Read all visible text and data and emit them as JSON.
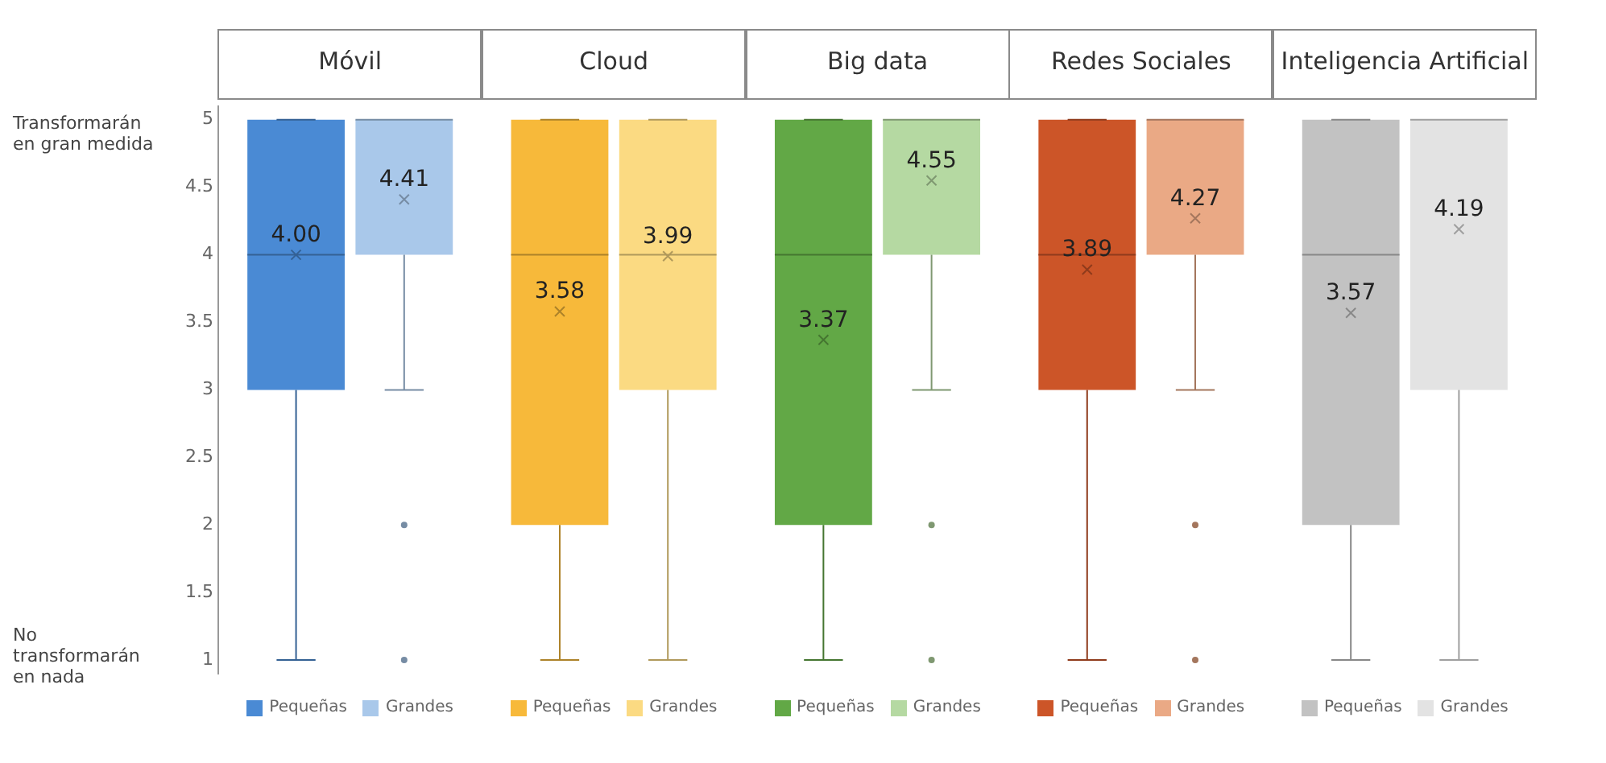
{
  "chart_data": {
    "type": "box",
    "categories": [
      "Móvil",
      "Cloud",
      "Big data",
      "Redes Sociales",
      "Inteligencia Artificial"
    ],
    "ylim": [
      0.9,
      5.1
    ],
    "yticks": [
      1,
      1.5,
      2,
      2.5,
      3,
      3.5,
      4,
      4.5,
      5
    ],
    "grid": false,
    "legend": "bottom",
    "annotations": [
      "Transformarán en gran medida",
      "No transformarán en nada"
    ],
    "series": [
      {
        "name": "Pequeñas",
        "colors": [
          "#4a8ad4",
          "#f7b93a",
          "#62a846",
          "#cc5528",
          "#c2c2c2"
        ],
        "value_labels": [
          "4.00",
          "3.58",
          "3.37",
          "3.89",
          "3.57"
        ],
        "boxes": [
          {
            "low": 1,
            "q1": 3,
            "median": 4,
            "q3": 5,
            "high": 5,
            "mean": 4.0
          },
          {
            "low": 1,
            "q1": 2,
            "median": 4,
            "q3": 5,
            "high": 5,
            "mean": 3.58
          },
          {
            "low": 1,
            "q1": 2,
            "median": 4,
            "q3": 5,
            "high": 5,
            "mean": 3.37
          },
          {
            "low": 1,
            "q1": 3,
            "median": 4,
            "q3": 5,
            "high": 5,
            "mean": 3.89
          },
          {
            "low": 1,
            "q1": 2,
            "median": 4,
            "q3": 5,
            "high": 5,
            "mean": 3.57
          }
        ]
      },
      {
        "name": "Grandes",
        "colors": [
          "#a9c8ea",
          "#fbda82",
          "#b5d9a2",
          "#eaa985",
          "#e3e3e3"
        ],
        "value_labels": [
          "4.41",
          "3.99",
          "4.55",
          "4.27",
          "4.19"
        ],
        "boxes": [
          {
            "low": 3,
            "q1": 4,
            "median": 5,
            "q3": 5,
            "high": 5,
            "mean": 4.41,
            "outliers": [
              2,
              1
            ]
          },
          {
            "low": 1,
            "q1": 3,
            "median": 4,
            "q3": 5,
            "high": 5,
            "mean": 3.99
          },
          {
            "low": 3,
            "q1": 4,
            "median": 5,
            "q3": 5,
            "high": 5,
            "mean": 4.55,
            "outliers": [
              2,
              1
            ]
          },
          {
            "low": 3,
            "q1": 4,
            "median": 5,
            "q3": 5,
            "high": 5,
            "mean": 4.27,
            "outliers": [
              2,
              1
            ]
          },
          {
            "low": 1,
            "q1": 3,
            "median": 5,
            "q3": 5,
            "high": 5,
            "mean": 4.19
          }
        ]
      }
    ]
  }
}
